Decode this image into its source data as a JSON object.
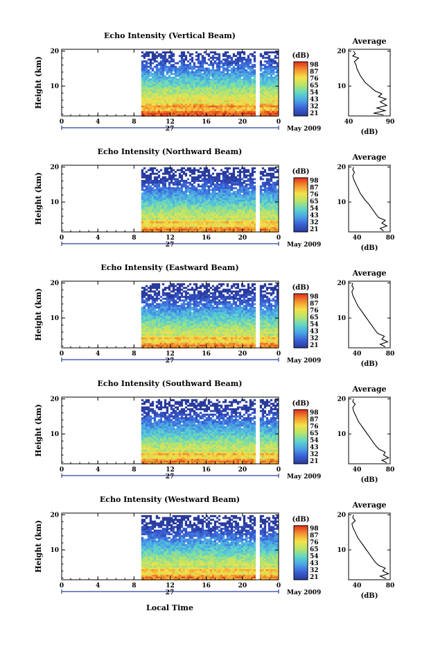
{
  "figure": {
    "x_axis_label": "Local Time",
    "month_label": "May 2009",
    "day_label": "27",
    "colorbar_unit": "(dB)",
    "avg_title": "Average",
    "avg_xlabel": "(dB)",
    "height_label": "Height (km)"
  },
  "chart_data": [
    {
      "type": "heatmap",
      "title": "Echo Intensity (Vertical Beam)",
      "ylabel": "Height (km)",
      "x_ticks": [
        "0",
        "4",
        "8",
        "12",
        "16",
        "20",
        "0"
      ],
      "x_range": [
        0,
        24
      ],
      "y_ticks": [
        "20",
        "10"
      ],
      "y_range": [
        1.5,
        20.5
      ],
      "data_start_hour": 8.8,
      "data_end_hour": 23.8,
      "gap_hours": [
        21.5,
        21.8
      ],
      "colorbar_ticks": [
        "98",
        "87",
        "76",
        "65",
        "54",
        "43",
        "32",
        "21"
      ],
      "colorbar_range": [
        21,
        98
      ],
      "average_profile": {
        "title": "Average",
        "xlabel": "(dB)",
        "x_ticks": [
          "40",
          "90"
        ],
        "x_range": [
          40,
          90
        ],
        "y_ticks": [
          "20",
          "10"
        ],
        "points": [
          [
            82,
            1.8
          ],
          [
            70,
            2.3
          ],
          [
            84,
            3
          ],
          [
            74,
            3.8
          ],
          [
            86,
            4.5
          ],
          [
            78,
            5.5
          ],
          [
            85,
            6.3
          ],
          [
            76,
            7
          ],
          [
            80,
            7.8
          ],
          [
            72,
            8.6
          ],
          [
            68,
            9.4
          ],
          [
            64,
            10.2
          ],
          [
            60,
            11
          ],
          [
            57,
            12
          ],
          [
            54,
            13
          ],
          [
            52,
            14
          ],
          [
            50,
            15
          ],
          [
            49,
            16
          ],
          [
            47,
            17
          ],
          [
            52,
            18
          ],
          [
            45,
            18.6
          ],
          [
            48,
            19.2
          ],
          [
            46,
            20
          ]
        ]
      }
    },
    {
      "type": "heatmap",
      "title": "Echo Intensity (Northward Beam)",
      "ylabel": "Height (km)",
      "x_ticks": [
        "0",
        "4",
        "8",
        "12",
        "16",
        "20",
        "0"
      ],
      "x_range": [
        0,
        24
      ],
      "y_ticks": [
        "20",
        "10"
      ],
      "y_range": [
        1.5,
        20.5
      ],
      "data_start_hour": 8.8,
      "data_end_hour": 23.8,
      "gap_hours": [
        21.5,
        21.8
      ],
      "colorbar_ticks": [
        "98",
        "87",
        "76",
        "65",
        "54",
        "43",
        "32",
        "21"
      ],
      "colorbar_range": [
        21,
        98
      ],
      "average_profile": {
        "title": "Average",
        "xlabel": "(dB)",
        "x_ticks": [
          "40",
          "80"
        ],
        "x_range": [
          30,
          80
        ],
        "y_ticks": [
          "20",
          "10"
        ],
        "points": [
          [
            72,
            1.8
          ],
          [
            68,
            2.5
          ],
          [
            76,
            3.2
          ],
          [
            70,
            4
          ],
          [
            74,
            4.8
          ],
          [
            66,
            5.6
          ],
          [
            63,
            6.5
          ],
          [
            60,
            7.5
          ],
          [
            57,
            8.5
          ],
          [
            54,
            9.5
          ],
          [
            50,
            10.5
          ],
          [
            47,
            11.5
          ],
          [
            44,
            12.5
          ],
          [
            42,
            13.5
          ],
          [
            40,
            14.5
          ],
          [
            38,
            15.5
          ],
          [
            36,
            16.5
          ],
          [
            35,
            17.5
          ],
          [
            37,
            18.5
          ],
          [
            35,
            19.2
          ],
          [
            36,
            20
          ]
        ]
      }
    },
    {
      "type": "heatmap",
      "title": "Echo Intensity (Eastward Beam)",
      "ylabel": "Height (km)",
      "x_ticks": [
        "0",
        "4",
        "8",
        "12",
        "16",
        "20",
        "0"
      ],
      "x_range": [
        0,
        24
      ],
      "y_ticks": [
        "20",
        "10"
      ],
      "y_range": [
        1.5,
        20.5
      ],
      "data_start_hour": 8.8,
      "data_end_hour": 23.8,
      "gap_hours": [
        21.5,
        21.8
      ],
      "colorbar_ticks": [
        "98",
        "87",
        "76",
        "65",
        "54",
        "43",
        "32",
        "21"
      ],
      "colorbar_range": [
        21,
        98
      ],
      "average_profile": {
        "title": "Average",
        "xlabel": "(dB)",
        "x_ticks": [
          "40",
          "80"
        ],
        "x_range": [
          30,
          80
        ],
        "y_ticks": [
          "20",
          "10"
        ],
        "points": [
          [
            74,
            1.8
          ],
          [
            68,
            2.5
          ],
          [
            77,
            3.2
          ],
          [
            70,
            4
          ],
          [
            73,
            4.8
          ],
          [
            65,
            5.6
          ],
          [
            62,
            6.5
          ],
          [
            59,
            7.5
          ],
          [
            56,
            8.5
          ],
          [
            53,
            9.5
          ],
          [
            50,
            10.5
          ],
          [
            47,
            11.5
          ],
          [
            44,
            12.5
          ],
          [
            41,
            13.5
          ],
          [
            39,
            14.5
          ],
          [
            37,
            15.5
          ],
          [
            35,
            16.5
          ],
          [
            34,
            17.5
          ],
          [
            36,
            18.5
          ],
          [
            34,
            19.2
          ],
          [
            35,
            20
          ]
        ]
      }
    },
    {
      "type": "heatmap",
      "title": "Echo Intensity (Southward Beam)",
      "ylabel": "Height (km)",
      "x_ticks": [
        "0",
        "4",
        "8",
        "12",
        "16",
        "20",
        "0"
      ],
      "x_range": [
        0,
        24
      ],
      "y_ticks": [
        "20",
        "10"
      ],
      "y_range": [
        1.5,
        20.5
      ],
      "data_start_hour": 8.8,
      "data_end_hour": 23.8,
      "gap_hours": [
        21.5,
        21.8
      ],
      "colorbar_ticks": [
        "98",
        "87",
        "76",
        "65",
        "54",
        "43",
        "32",
        "21"
      ],
      "colorbar_range": [
        21,
        98
      ],
      "average_profile": {
        "title": "Average",
        "xlabel": "(dB)",
        "x_ticks": [
          "40",
          "80"
        ],
        "x_range": [
          30,
          80
        ],
        "y_ticks": [
          "20",
          "10"
        ],
        "points": [
          [
            76,
            1.8
          ],
          [
            70,
            2.5
          ],
          [
            78,
            3.2
          ],
          [
            72,
            4
          ],
          [
            74,
            4.8
          ],
          [
            67,
            5.6
          ],
          [
            63,
            6.5
          ],
          [
            60,
            7.5
          ],
          [
            57,
            8.5
          ],
          [
            54,
            9.5
          ],
          [
            51,
            10.5
          ],
          [
            48,
            11.5
          ],
          [
            45,
            12.5
          ],
          [
            42,
            13.5
          ],
          [
            40,
            14.5
          ],
          [
            38,
            15.5
          ],
          [
            36,
            16.5
          ],
          [
            35,
            17.5
          ],
          [
            38,
            18.5
          ],
          [
            35,
            19.2
          ],
          [
            36,
            20
          ]
        ]
      }
    },
    {
      "type": "heatmap",
      "title": "Echo Intensity (Westward Beam)",
      "ylabel": "Height (km)",
      "x_ticks": [
        "0",
        "4",
        "8",
        "12",
        "16",
        "20",
        "0"
      ],
      "x_range": [
        0,
        24
      ],
      "y_ticks": [
        "20",
        "10"
      ],
      "y_range": [
        1.5,
        20.5
      ],
      "data_start_hour": 8.8,
      "data_end_hour": 23.8,
      "gap_hours": [
        21.5,
        21.8
      ],
      "colorbar_ticks": [
        "98",
        "87",
        "76",
        "65",
        "54",
        "43",
        "32",
        "21"
      ],
      "colorbar_range": [
        21,
        98
      ],
      "average_profile": {
        "title": "Average",
        "xlabel": "(dB)",
        "x_ticks": [
          "40",
          "80"
        ],
        "x_range": [
          30,
          80
        ],
        "y_ticks": [
          "20",
          "10"
        ],
        "points": [
          [
            75,
            1.8
          ],
          [
            68,
            2.5
          ],
          [
            78,
            3.2
          ],
          [
            71,
            4
          ],
          [
            74,
            4.8
          ],
          [
            66,
            5.6
          ],
          [
            62,
            6.5
          ],
          [
            59,
            7.5
          ],
          [
            56,
            8.5
          ],
          [
            53,
            9.5
          ],
          [
            50,
            10.5
          ],
          [
            47,
            11.5
          ],
          [
            44,
            12.5
          ],
          [
            41,
            13.5
          ],
          [
            39,
            14.5
          ],
          [
            37,
            15.5
          ],
          [
            35,
            16.5
          ],
          [
            34,
            17.5
          ],
          [
            38,
            18.3
          ],
          [
            35,
            19.2
          ],
          [
            36,
            20
          ]
        ]
      }
    }
  ]
}
